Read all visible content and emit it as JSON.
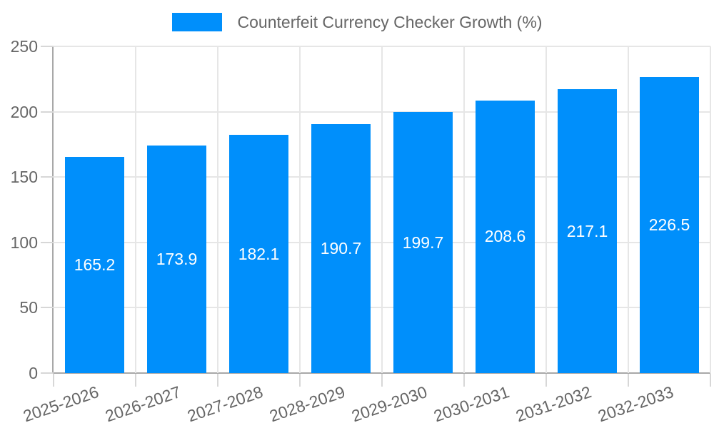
{
  "chart_data": {
    "type": "bar",
    "title": "Counterfeit Currency Checker Growth (%)",
    "legend": {
      "label": "Counterfeit Currency Checker Growth (%)",
      "position": "top"
    },
    "categories": [
      "2025-2026",
      "2026-2027",
      "2027-2028",
      "2028-2029",
      "2029-2030",
      "2030-2031",
      "2031-2032",
      "2032-2033"
    ],
    "series": [
      {
        "name": "Counterfeit Currency Checker Growth (%)",
        "values": [
          165.2,
          173.9,
          182.1,
          190.7,
          199.7,
          208.6,
          217.1,
          226.5
        ]
      }
    ],
    "value_label_decimals": 1,
    "xlabel": "",
    "ylabel": "",
    "ylim": [
      0,
      250
    ],
    "yticks": [
      0,
      50,
      100,
      150,
      200,
      250
    ],
    "grid": true,
    "colors": {
      "bar": "#008FFB",
      "gridline": "#e6e6e6",
      "tick_mark": "#d7d7d7",
      "axis_line": "#a8a8a8",
      "tick_text": "#666666",
      "value_text": "#ffffff",
      "background": "#ffffff"
    }
  }
}
